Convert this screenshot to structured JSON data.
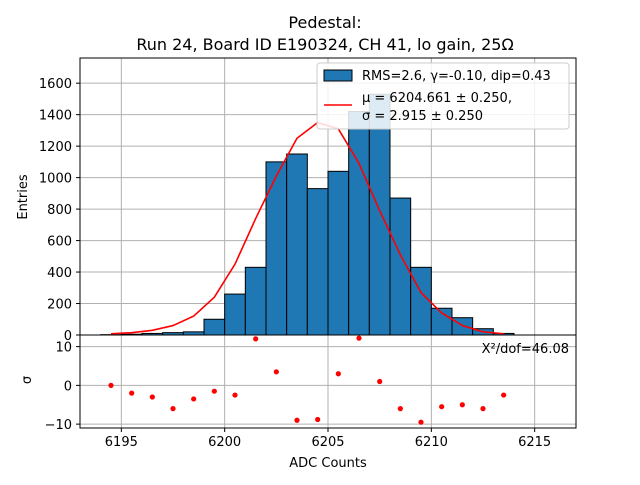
{
  "title": {
    "line1": "Pedestal:",
    "line2": "Run 24, Board ID E190324, CH 41, lo gain, 25Ω"
  },
  "colors": {
    "bar_fill": "#1f77b4",
    "bar_edge": "#000000",
    "fit_line": "#ff0000",
    "residual_points": "#ff0000",
    "grid": "#b0b0b0"
  },
  "chart_data": [
    {
      "type": "bar",
      "panel": "histogram",
      "bin_edges": [
        6194,
        6195,
        6196,
        6197,
        6198,
        6199,
        6200,
        6201,
        6202,
        6203,
        6204,
        6205,
        6206,
        6207,
        6208,
        6209,
        6210,
        6211,
        6212,
        6213,
        6214
      ],
      "values": [
        2,
        5,
        10,
        15,
        20,
        100,
        260,
        430,
        1100,
        1150,
        930,
        1040,
        1420,
        1530,
        870,
        430,
        170,
        110,
        40,
        10
      ],
      "fit": {
        "x": [
          6194.5,
          6195.5,
          6196.5,
          6197.5,
          6198.5,
          6199.5,
          6200.5,
          6201.5,
          6202.5,
          6203.5,
          6204.5,
          6205.5,
          6206.5,
          6207.5,
          6208.5,
          6209.5,
          6210.5,
          6211.5,
          6212.5,
          6213.5
        ],
        "y": [
          8,
          15,
          30,
          60,
          120,
          240,
          450,
          740,
          1010,
          1250,
          1350,
          1310,
          1090,
          790,
          510,
          270,
          140,
          60,
          20,
          8
        ]
      },
      "xlabel": "",
      "ylabel": "Entries",
      "xlim": [
        6193,
        6217
      ],
      "ylim": [
        0,
        1760
      ],
      "yticks": [
        0,
        200,
        400,
        600,
        800,
        1000,
        1200,
        1400,
        1600
      ],
      "legend": {
        "position": "top-right",
        "entries": [
          {
            "kind": "patch",
            "label": "RMS=2.6, γ=-0.10, dip=0.43"
          },
          {
            "kind": "line",
            "label_line1": "μ = 6204.661 ± 0.250,",
            "label_line2": "σ = 2.915 ± 0.250"
          }
        ]
      },
      "grid": true
    },
    {
      "type": "scatter",
      "panel": "residuals",
      "x": [
        6194.5,
        6195.5,
        6196.5,
        6197.5,
        6198.5,
        6199.5,
        6200.5,
        6201.5,
        6202.5,
        6203.5,
        6204.5,
        6205.5,
        6206.5,
        6207.5,
        6208.5,
        6209.5,
        6210.5,
        6211.5,
        6212.5,
        6213.5
      ],
      "y": [
        0,
        -2,
        -3,
        -6,
        -3.5,
        -1.5,
        -2.5,
        12,
        3.5,
        -9,
        -8.8,
        3,
        12.2,
        1,
        -6,
        -9.5,
        -5.5,
        -5,
        -6,
        -2.5
      ],
      "xlabel": "ADC Counts",
      "ylabel": "σ",
      "xlim": [
        6193,
        6217
      ],
      "ylim": [
        -11,
        13
      ],
      "xticks": [
        6195,
        6200,
        6205,
        6210,
        6215
      ],
      "yticks": [
        -10,
        0,
        10
      ],
      "annotation": "X²/dof=46.08",
      "grid": true
    }
  ]
}
